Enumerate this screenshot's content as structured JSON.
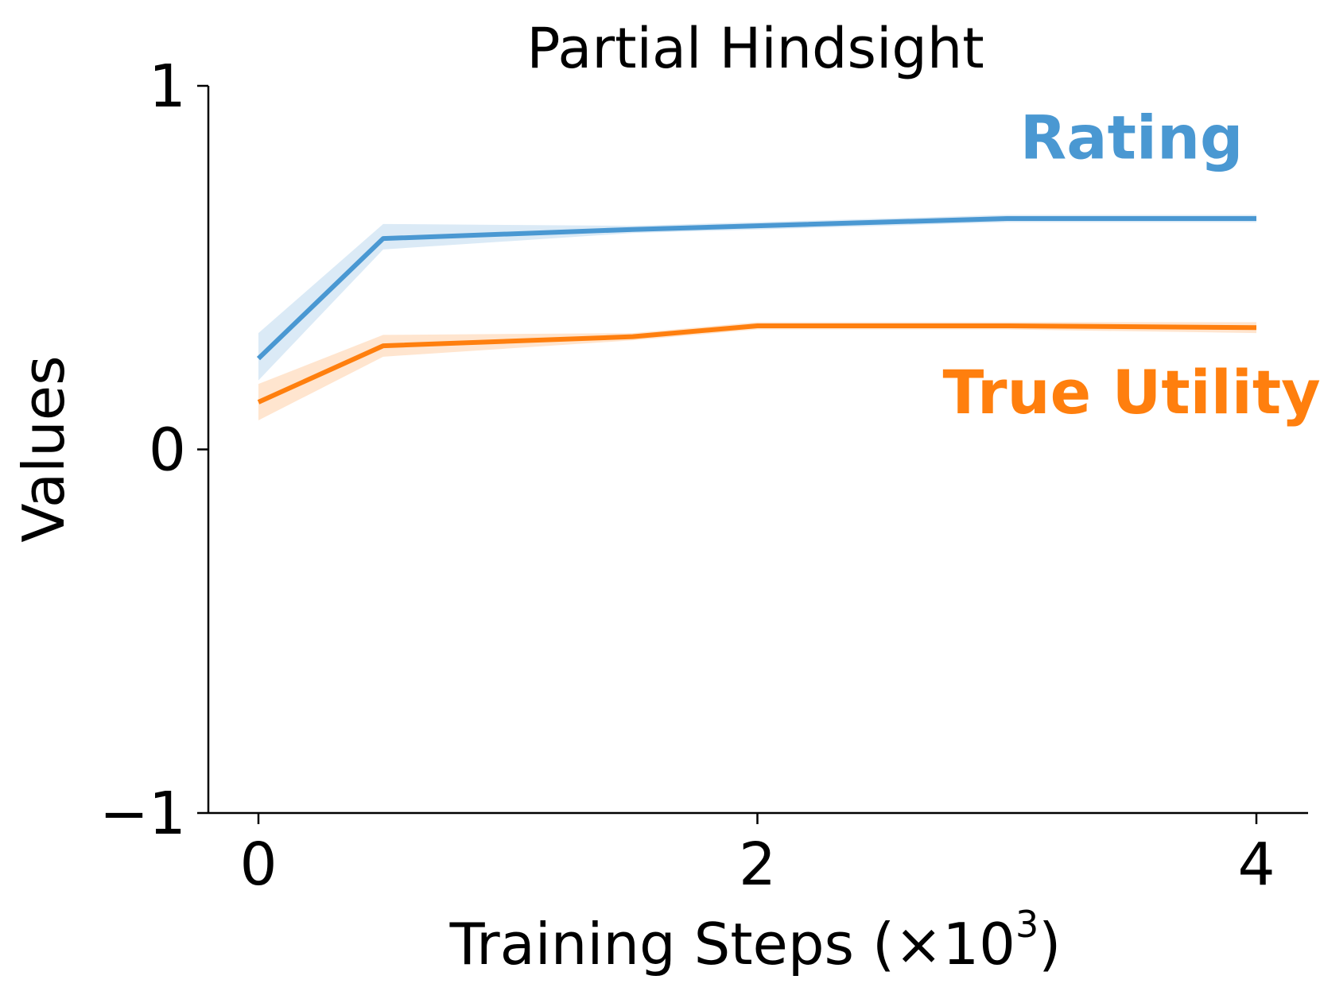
{
  "chart_data": {
    "type": "line",
    "title": "Partial Hindsight",
    "xlabel": "Training Steps (×10",
    "xlabel_exponent": "3",
    "xlabel_close": ")",
    "ylabel": "Values",
    "xlim": [
      -0.2,
      4.2
    ],
    "ylim": [
      -1,
      1
    ],
    "xticks": [
      0,
      2,
      4
    ],
    "xtick_labels": [
      "0",
      "2",
      "4"
    ],
    "yticks": [
      -1,
      0,
      1
    ],
    "ytick_labels": [
      "−1",
      "0",
      "1"
    ],
    "grid": false,
    "legend": "inline labels",
    "series": [
      {
        "name": "Rating",
        "color": "#4a98d2",
        "x": [
          0,
          0.5,
          1.5,
          2,
          3,
          4
        ],
        "values": [
          0.25,
          0.58,
          0.605,
          0.615,
          0.635,
          0.635
        ],
        "lower": [
          0.19,
          0.55,
          0.595,
          0.605,
          0.625,
          0.625
        ],
        "upper": [
          0.32,
          0.62,
          0.615,
          0.625,
          0.645,
          0.645
        ]
      },
      {
        "name": "True Utility",
        "color": "#ff7f0e",
        "x": [
          0,
          0.5,
          1.5,
          2,
          3,
          4
        ],
        "values": [
          0.13,
          0.285,
          0.31,
          0.34,
          0.34,
          0.335
        ],
        "lower": [
          0.08,
          0.255,
          0.3,
          0.33,
          0.33,
          0.32
        ],
        "upper": [
          0.18,
          0.315,
          0.32,
          0.35,
          0.35,
          0.35
        ]
      }
    ],
    "annotations": [
      {
        "text": "Rating",
        "series": 0,
        "x": 3.5,
        "y": 0.8
      },
      {
        "text": "True Utility",
        "series": 1,
        "x": 3.5,
        "y": 0.1
      }
    ]
  }
}
